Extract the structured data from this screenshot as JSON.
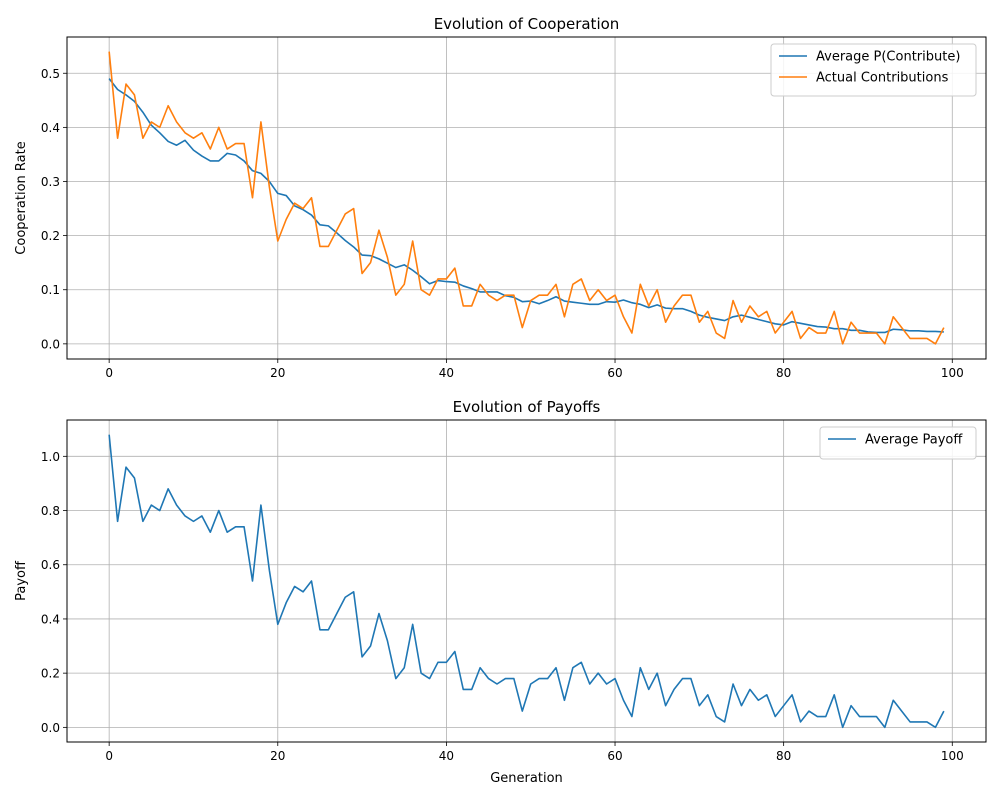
{
  "chart_data": [
    {
      "type": "line",
      "title": "Evolution of Cooperation",
      "xlabel": "",
      "ylabel": "Cooperation Rate",
      "xlim": [
        -5,
        104
      ],
      "ylim": [
        -0.028,
        0.567
      ],
      "xticks": [
        0,
        20,
        40,
        60,
        80,
        100
      ],
      "yticks": [
        0.0,
        0.1,
        0.2,
        0.3,
        0.4,
        0.5
      ],
      "ytick_labels": [
        "0.0",
        "0.1",
        "0.2",
        "0.3",
        "0.4",
        "0.5"
      ],
      "grid": true,
      "legend": "top-right",
      "x": [
        0,
        1,
        2,
        3,
        4,
        5,
        6,
        7,
        8,
        9,
        10,
        11,
        12,
        13,
        14,
        15,
        16,
        17,
        18,
        19,
        20,
        21,
        22,
        23,
        24,
        25,
        26,
        27,
        28,
        29,
        30,
        31,
        32,
        33,
        34,
        35,
        36,
        37,
        38,
        39,
        40,
        41,
        42,
        43,
        44,
        45,
        46,
        47,
        48,
        49,
        50,
        51,
        52,
        53,
        54,
        55,
        56,
        57,
        58,
        59,
        60,
        61,
        62,
        63,
        64,
        65,
        66,
        67,
        68,
        69,
        70,
        71,
        72,
        73,
        74,
        75,
        76,
        77,
        78,
        79,
        80,
        81,
        82,
        83,
        84,
        85,
        86,
        87,
        88,
        89,
        90,
        91,
        92,
        93,
        94,
        95,
        96,
        97,
        98,
        99
      ],
      "series": [
        {
          "name": "Average P(Contribute)",
          "color": "#1f77b4",
          "values": [
            0.49,
            0.47,
            0.46,
            0.448,
            0.428,
            0.404,
            0.39,
            0.374,
            0.367,
            0.376,
            0.358,
            0.347,
            0.338,
            0.338,
            0.352,
            0.349,
            0.338,
            0.32,
            0.315,
            0.3,
            0.278,
            0.274,
            0.255,
            0.248,
            0.238,
            0.22,
            0.218,
            0.205,
            0.191,
            0.179,
            0.164,
            0.163,
            0.157,
            0.149,
            0.141,
            0.146,
            0.136,
            0.124,
            0.111,
            0.117,
            0.115,
            0.114,
            0.107,
            0.102,
            0.096,
            0.096,
            0.096,
            0.089,
            0.086,
            0.078,
            0.079,
            0.074,
            0.08,
            0.087,
            0.079,
            0.077,
            0.075,
            0.073,
            0.073,
            0.078,
            0.077,
            0.081,
            0.076,
            0.073,
            0.067,
            0.072,
            0.066,
            0.065,
            0.065,
            0.06,
            0.053,
            0.049,
            0.046,
            0.043,
            0.05,
            0.053,
            0.049,
            0.045,
            0.041,
            0.037,
            0.035,
            0.041,
            0.038,
            0.035,
            0.032,
            0.031,
            0.028,
            0.028,
            0.025,
            0.025,
            0.022,
            0.021,
            0.021,
            0.027,
            0.026,
            0.024,
            0.024,
            0.023,
            0.023,
            0.022
          ]
        },
        {
          "name": "Actual Contributions",
          "color": "#ff7f0e",
          "values": [
            0.54,
            0.38,
            0.48,
            0.46,
            0.38,
            0.41,
            0.4,
            0.44,
            0.41,
            0.39,
            0.38,
            0.39,
            0.36,
            0.4,
            0.36,
            0.37,
            0.37,
            0.27,
            0.41,
            0.29,
            0.19,
            0.23,
            0.26,
            0.25,
            0.27,
            0.18,
            0.18,
            0.21,
            0.24,
            0.25,
            0.13,
            0.15,
            0.21,
            0.16,
            0.09,
            0.11,
            0.19,
            0.1,
            0.09,
            0.12,
            0.12,
            0.14,
            0.07,
            0.07,
            0.11,
            0.09,
            0.08,
            0.09,
            0.09,
            0.03,
            0.08,
            0.09,
            0.09,
            0.11,
            0.05,
            0.11,
            0.12,
            0.08,
            0.1,
            0.08,
            0.09,
            0.05,
            0.02,
            0.11,
            0.07,
            0.1,
            0.04,
            0.07,
            0.09,
            0.09,
            0.04,
            0.06,
            0.02,
            0.01,
            0.08,
            0.04,
            0.07,
            0.05,
            0.06,
            0.02,
            0.04,
            0.06,
            0.01,
            0.03,
            0.02,
            0.02,
            0.06,
            0.0,
            0.04,
            0.02,
            0.02,
            0.02,
            0.0,
            0.05,
            0.03,
            0.01,
            0.01,
            0.01,
            0.0,
            0.03
          ]
        }
      ]
    },
    {
      "type": "line",
      "title": "Evolution of Payoffs",
      "xlabel": "Generation",
      "ylabel": "Payoff",
      "xlim": [
        -5,
        104
      ],
      "ylim": [
        -0.054,
        1.134
      ],
      "xticks": [
        0,
        20,
        40,
        60,
        80,
        100
      ],
      "yticks": [
        0.0,
        0.2,
        0.4,
        0.6,
        0.8,
        1.0
      ],
      "ytick_labels": [
        "0.0",
        "0.2",
        "0.4",
        "0.6",
        "0.8",
        "1.0"
      ],
      "grid": true,
      "legend": "top-right",
      "x": [
        0,
        1,
        2,
        3,
        4,
        5,
        6,
        7,
        8,
        9,
        10,
        11,
        12,
        13,
        14,
        15,
        16,
        17,
        18,
        19,
        20,
        21,
        22,
        23,
        24,
        25,
        26,
        27,
        28,
        29,
        30,
        31,
        32,
        33,
        34,
        35,
        36,
        37,
        38,
        39,
        40,
        41,
        42,
        43,
        44,
        45,
        46,
        47,
        48,
        49,
        50,
        51,
        52,
        53,
        54,
        55,
        56,
        57,
        58,
        59,
        60,
        61,
        62,
        63,
        64,
        65,
        66,
        67,
        68,
        69,
        70,
        71,
        72,
        73,
        74,
        75,
        76,
        77,
        78,
        79,
        80,
        81,
        82,
        83,
        84,
        85,
        86,
        87,
        88,
        89,
        90,
        91,
        92,
        93,
        94,
        95,
        96,
        97,
        98,
        99
      ],
      "series": [
        {
          "name": "Average Payoff",
          "color": "#1f77b4",
          "values": [
            1.08,
            0.76,
            0.96,
            0.92,
            0.76,
            0.82,
            0.8,
            0.88,
            0.82,
            0.78,
            0.76,
            0.78,
            0.72,
            0.8,
            0.72,
            0.74,
            0.74,
            0.54,
            0.82,
            0.58,
            0.38,
            0.46,
            0.52,
            0.5,
            0.54,
            0.36,
            0.36,
            0.42,
            0.48,
            0.5,
            0.26,
            0.3,
            0.42,
            0.32,
            0.18,
            0.22,
            0.38,
            0.2,
            0.18,
            0.24,
            0.24,
            0.28,
            0.14,
            0.14,
            0.22,
            0.18,
            0.16,
            0.18,
            0.18,
            0.06,
            0.16,
            0.18,
            0.18,
            0.22,
            0.1,
            0.22,
            0.24,
            0.16,
            0.2,
            0.16,
            0.18,
            0.1,
            0.04,
            0.22,
            0.14,
            0.2,
            0.08,
            0.14,
            0.18,
            0.18,
            0.08,
            0.12,
            0.04,
            0.02,
            0.16,
            0.08,
            0.14,
            0.1,
            0.12,
            0.04,
            0.08,
            0.12,
            0.02,
            0.06,
            0.04,
            0.04,
            0.12,
            0.0,
            0.08,
            0.04,
            0.04,
            0.04,
            0.0,
            0.1,
            0.06,
            0.02,
            0.02,
            0.02,
            0.0,
            0.06
          ]
        }
      ]
    }
  ]
}
